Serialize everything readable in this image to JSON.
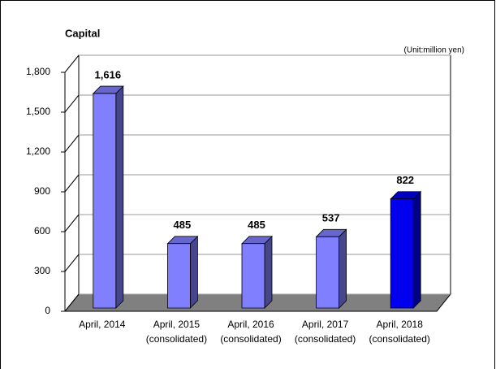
{
  "chart_data": {
    "type": "bar3d",
    "title": "Capital",
    "subtitle": "(Unit:million yen)",
    "categories": [
      [
        "April, 2014"
      ],
      [
        "April, 2015",
        "(consolidated)"
      ],
      [
        "April, 2016",
        "(consolidated)"
      ],
      [
        "April, 2017",
        "(consolidated)"
      ],
      [
        "April, 2018",
        "(consolidated)"
      ]
    ],
    "values": [
      1616,
      485,
      485,
      537,
      822
    ],
    "value_labels": [
      "1,616",
      "485",
      "485",
      "537",
      "822"
    ],
    "colors": [
      "#8080ff",
      "#8080ff",
      "#8080ff",
      "#8080ff",
      "#0000ee"
    ],
    "ylim": [
      0,
      1800
    ],
    "yticks": [
      0,
      300,
      600,
      900,
      {
        "value": 1200,
        "label": "1,200"
      },
      {
        "value": 1500,
        "label": "1,500"
      },
      {
        "value": 1800,
        "label": "1,800"
      }
    ],
    "grid": true
  }
}
